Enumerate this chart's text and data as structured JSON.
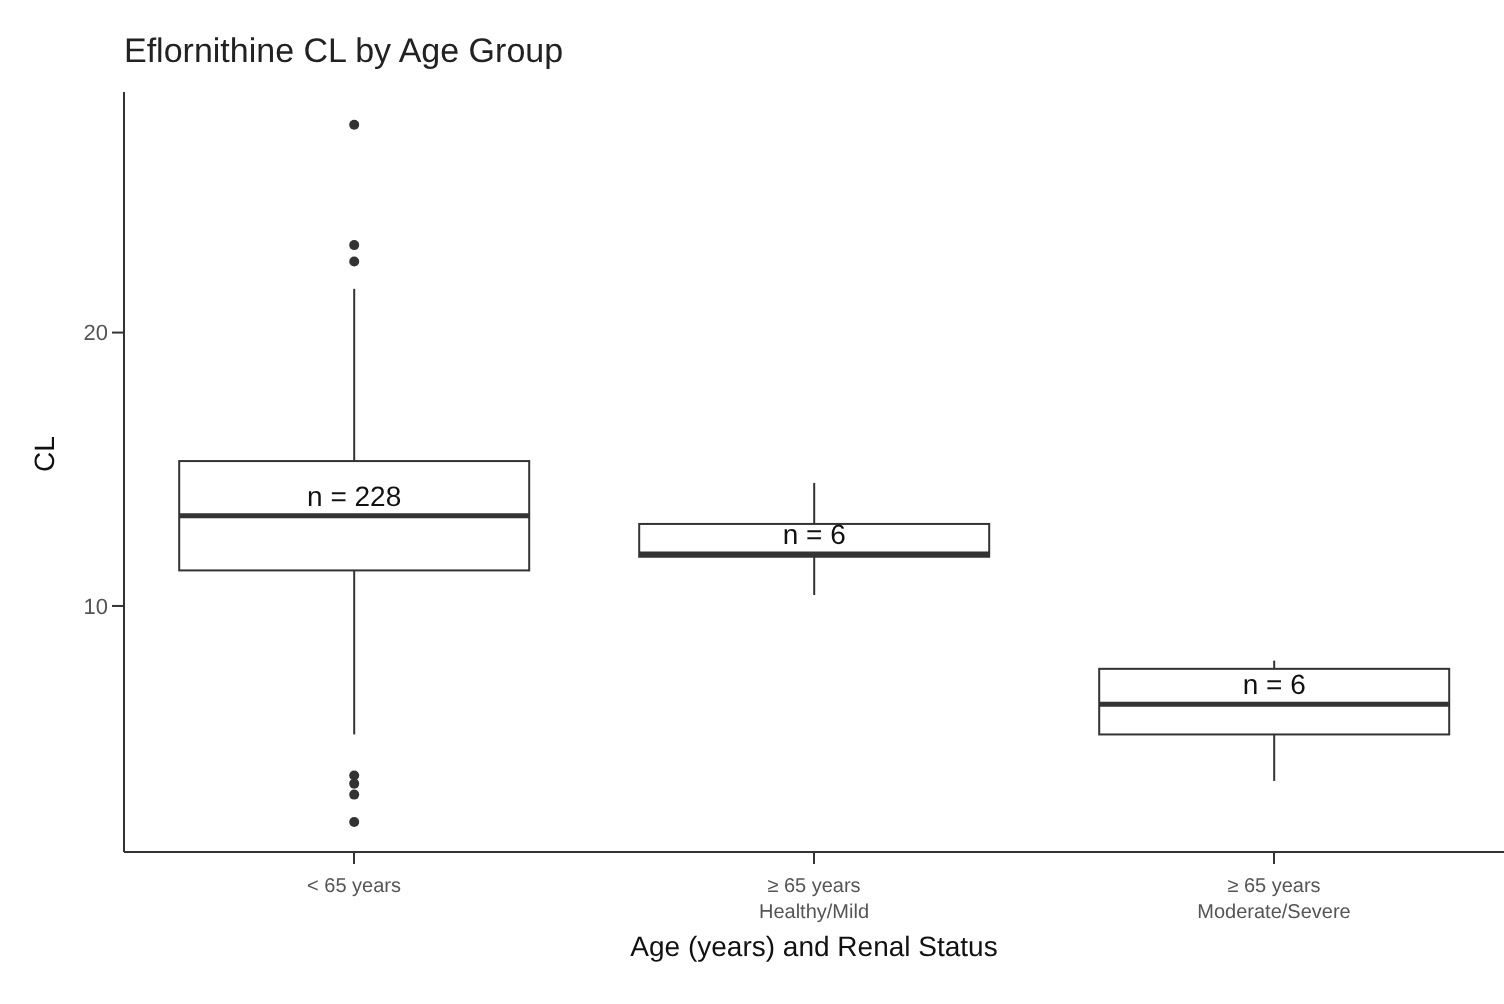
{
  "chart_data": {
    "type": "box",
    "title": "Eflornithine CL by Age Group",
    "xlabel": "Age (years) and Renal Status",
    "ylabel": "CL",
    "categories": [
      "< 65 years",
      "≥ 65 years\nHealthy/Mild",
      "≥ 65 years\nModerate/Severe"
    ],
    "boxes": [
      {
        "low": 5.3,
        "q1": 11.3,
        "median": 13.3,
        "q3": 15.3,
        "high": 21.6,
        "outliers": [
          27.6,
          23.2,
          22.6,
          3.8,
          3.5,
          3.1,
          2.1
        ]
      },
      {
        "low": 10.4,
        "q1": 11.8,
        "median": 11.9,
        "q3": 13.0,
        "high": 14.5
      },
      {
        "low": 3.6,
        "q1": 5.3,
        "median": 6.4,
        "q3": 7.7,
        "high": 8.0
      }
    ],
    "color": "#333333",
    "ylim": [
      1,
      28.8
    ],
    "yticks": [
      10,
      20
    ],
    "grid": false,
    "legend": false,
    "annotations": [
      "n = 228",
      "n = 6",
      "n = 6"
    ]
  }
}
